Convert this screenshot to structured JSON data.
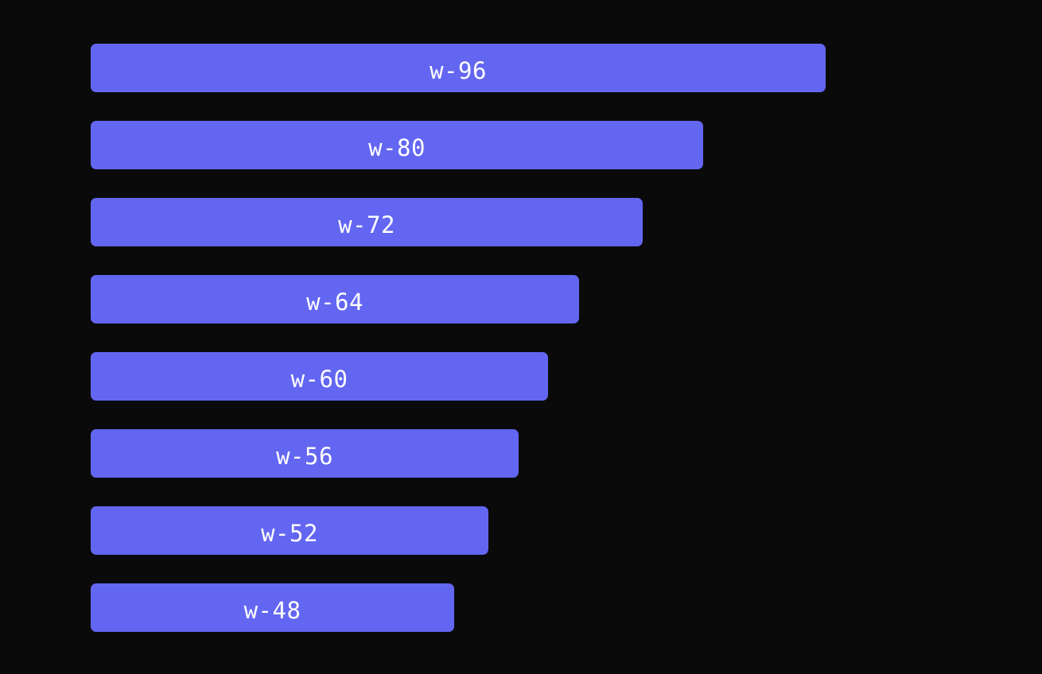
{
  "colors": {
    "background": "#0a0a0a",
    "box": "#6366f1",
    "label": "#ffffff"
  },
  "boxes": [
    {
      "label": "w-96"
    },
    {
      "label": "w-80"
    },
    {
      "label": "w-72"
    },
    {
      "label": "w-64"
    },
    {
      "label": "w-60"
    },
    {
      "label": "w-56"
    },
    {
      "label": "w-52"
    },
    {
      "label": "w-48"
    }
  ]
}
